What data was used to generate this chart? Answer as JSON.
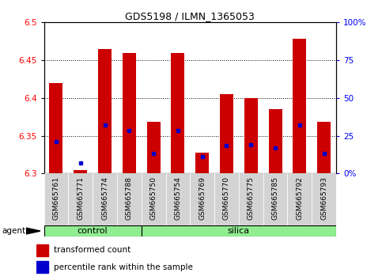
{
  "title": "GDS5198 / ILMN_1365053",
  "samples": [
    "GSM665761",
    "GSM665771",
    "GSM665774",
    "GSM665788",
    "GSM665750",
    "GSM665754",
    "GSM665769",
    "GSM665770",
    "GSM665775",
    "GSM665785",
    "GSM665792",
    "GSM665793"
  ],
  "groups": [
    "control",
    "control",
    "control",
    "control",
    "silica",
    "silica",
    "silica",
    "silica",
    "silica",
    "silica",
    "silica",
    "silica"
  ],
  "red_values": [
    6.42,
    6.305,
    6.465,
    6.46,
    6.368,
    6.46,
    6.328,
    6.405,
    6.4,
    6.385,
    6.478,
    6.368
  ],
  "blue_values": [
    6.342,
    6.314,
    6.364,
    6.357,
    6.327,
    6.357,
    6.322,
    6.337,
    6.338,
    6.334,
    6.364,
    6.327
  ],
  "ylim": [
    6.3,
    6.5
  ],
  "yticks": [
    6.3,
    6.35,
    6.4,
    6.45,
    6.5
  ],
  "bar_color": "#cc0000",
  "blue_color": "#0000cc",
  "group_bg": "#90ee90",
  "tick_label_bg": "#d3d3d3",
  "bar_width": 0.55,
  "n_control": 4,
  "n_silica": 8
}
